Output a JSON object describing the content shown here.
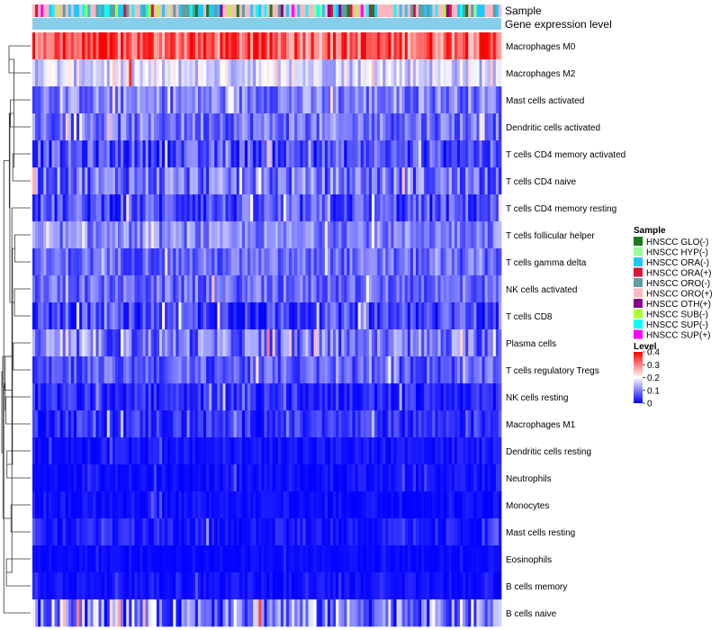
{
  "chart_data": {
    "type": "heatmap",
    "annotation_rows": {
      "sample": "Sample",
      "gene_expression": "Gene expression level"
    },
    "rows": [
      {
        "name": "Macrophages M0",
        "mean": 0.33,
        "spread": 0.09
      },
      {
        "name": "Macrophages M2",
        "mean": 0.17,
        "spread": 0.06
      },
      {
        "name": "Mast cells activated",
        "mean": 0.1,
        "spread": 0.06
      },
      {
        "name": "Dendritic cells activated",
        "mean": 0.09,
        "spread": 0.06
      },
      {
        "name": "T cells CD4 memory activated",
        "mean": 0.06,
        "spread": 0.06
      },
      {
        "name": "T cells CD4 naive",
        "mean": 0.09,
        "spread": 0.07
      },
      {
        "name": "T cells CD4 memory resting",
        "mean": 0.06,
        "spread": 0.06
      },
      {
        "name": "T cells follicular helper",
        "mean": 0.1,
        "spread": 0.05
      },
      {
        "name": "T cells gamma delta",
        "mean": 0.08,
        "spread": 0.05
      },
      {
        "name": "NK cells activated",
        "mean": 0.08,
        "spread": 0.05
      },
      {
        "name": "T cells CD8",
        "mean": 0.05,
        "spread": 0.06
      },
      {
        "name": "Plasma cells",
        "mean": 0.09,
        "spread": 0.07
      },
      {
        "name": "T cells regulatory  Tregs",
        "mean": 0.07,
        "spread": 0.05
      },
      {
        "name": "NK cells resting",
        "mean": 0.03,
        "spread": 0.04
      },
      {
        "name": "Macrophages M1",
        "mean": 0.04,
        "spread": 0.04
      },
      {
        "name": "Dendritic cells resting",
        "mean": 0.015,
        "spread": 0.02
      },
      {
        "name": "Neutrophils",
        "mean": 0.01,
        "spread": 0.02
      },
      {
        "name": "Monocytes",
        "mean": 0.01,
        "spread": 0.02
      },
      {
        "name": "Mast cells resting",
        "mean": 0.02,
        "spread": 0.03
      },
      {
        "name": "Eosinophils",
        "mean": 0.005,
        "spread": 0.015
      },
      {
        "name": "B cells memory",
        "mean": 0.01,
        "spread": 0.02
      },
      {
        "name": "B cells naive",
        "mean": 0.1,
        "spread": 0.1
      }
    ],
    "n_samples": 170,
    "sample_groups": [
      {
        "name": "HNSCC GLO(-)",
        "color": "#1a7a1a",
        "weight": 2
      },
      {
        "name": "HNSCC HYP(-)",
        "color": "#98fb98",
        "weight": 5
      },
      {
        "name": "HNSCC ORA(-)",
        "color": "#1ec8ff",
        "weight": 12
      },
      {
        "name": "HNSCC ORA(+)",
        "color": "#dc143c",
        "weight": 2
      },
      {
        "name": "HNSCC ORO(-)",
        "color": "#5f9ea0",
        "weight": 8
      },
      {
        "name": "HNSCC ORO(+)",
        "color": "#ffb6c1",
        "weight": 22
      },
      {
        "name": "HNSCC OTH(+)",
        "color": "#8b008b",
        "weight": 1
      },
      {
        "name": "HNSCC SUB(-)",
        "color": "#adff2f",
        "weight": 3
      },
      {
        "name": "HNSCC SUP(-)",
        "color": "#00ffff",
        "weight": 8
      },
      {
        "name": "HNSCC SUP(+)",
        "color": "#ff00ff",
        "weight": 1
      }
    ],
    "gene_expression_color": "#87ceeb",
    "legend": {
      "sample_title": "Sample",
      "level_title": "Level",
      "level_ticks": [
        "0.4",
        "0.3",
        "0.2",
        "0.1",
        "0"
      ],
      "level_values": [
        0.4,
        0.3,
        0.2,
        0.1,
        0
      ]
    },
    "color_scale": {
      "low": "#0000ff",
      "mid": "#ffffff",
      "high": "#ff0000",
      "range": [
        0,
        0.4
      ],
      "midpoint": 0.2
    },
    "dendrogram": [
      [
        0,
        1,
        0.75
      ],
      [
        2,
        3,
        0.7
      ],
      [
        4,
        5,
        0.62
      ],
      [
        7,
        8,
        0.55
      ],
      [
        11,
        12,
        0.6
      ],
      [
        17,
        18,
        0.68
      ],
      [
        15,
        16,
        0.82
      ],
      [
        20,
        19,
        0.84
      ],
      [
        9,
        10,
        0.56
      ],
      [
        22,
        24,
        0.58
      ],
      [
        28,
        25,
        0.63
      ],
      [
        29,
        6,
        0.65
      ],
      [
        13,
        14,
        0.86
      ],
      [
        34,
        26,
        0.88
      ],
      [
        23,
        30,
        0.72
      ],
      [
        36,
        31,
        0.74
      ],
      [
        33,
        35,
        0.9
      ],
      [
        37,
        21,
        0.93
      ],
      [
        27,
        38,
        0.96
      ],
      [
        39,
        32,
        0.97
      ],
      [
        40,
        41,
        1.0
      ]
    ]
  }
}
